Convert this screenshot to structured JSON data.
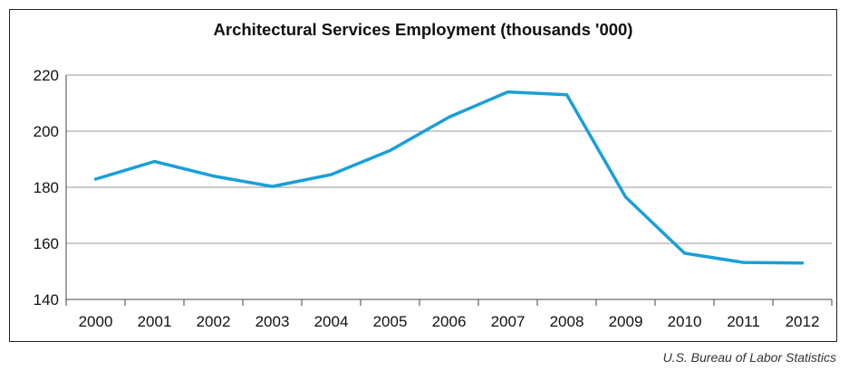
{
  "chart_data": {
    "type": "line",
    "title": "Architectural Services Employment (thousands '000)",
    "xlabel": "",
    "ylabel": "",
    "categories": [
      "2000",
      "2001",
      "2002",
      "2003",
      "2004",
      "2005",
      "2006",
      "2007",
      "2008",
      "2009",
      "2010",
      "2011",
      "2012"
    ],
    "series": [
      {
        "values": [
          182.9,
          189.2,
          184.0,
          180.3,
          184.5,
          193.1,
          205.0,
          214.0,
          213.0,
          176.5,
          156.5,
          153.2,
          153.0
        ]
      }
    ],
    "ylim": [
      140,
      220
    ],
    "yticks": [
      "140",
      "160",
      "180",
      "200",
      "220"
    ],
    "grid": true,
    "legend": "none",
    "line_color": "#1a9fd8"
  },
  "source": "U.S. Bureau of Labor Statistics"
}
